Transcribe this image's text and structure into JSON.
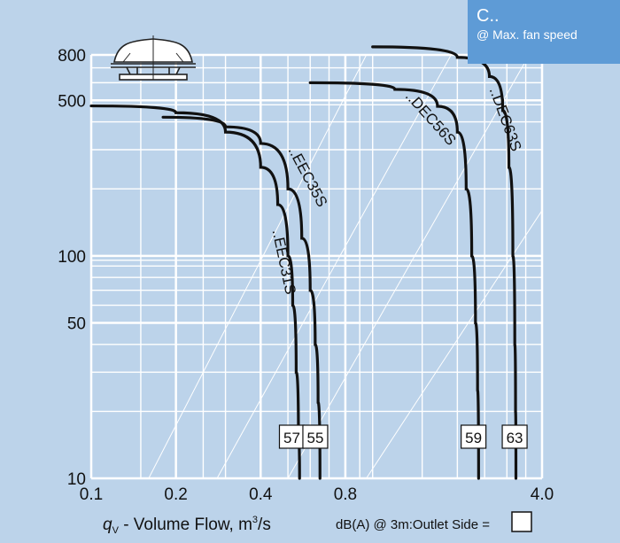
{
  "colors": {
    "background": "#bcd3ea",
    "badge": "#5e9bd6",
    "curve": "#111111",
    "grid": "#ffffff"
  },
  "badge": {
    "code": "C..",
    "note": "@ Max. fan speed"
  },
  "icon": "roof-fan-icon",
  "chart_data": {
    "type": "line",
    "x_scale": "log",
    "y_scale": "log",
    "xlim": [
      0.1,
      4.0
    ],
    "ylim": [
      10,
      800
    ],
    "x_ticks": [
      {
        "value": 0.1,
        "label": "0.1"
      },
      {
        "value": 0.2,
        "label": "0.2"
      },
      {
        "value": 0.4,
        "label": "0.4"
      },
      {
        "value": 0.8,
        "label": "0.8"
      },
      {
        "value": 4.0,
        "label": "4.0"
      }
    ],
    "y_ticks": [
      {
        "value": 10,
        "label": "10"
      },
      {
        "value": 50,
        "label": "50"
      },
      {
        "value": 100,
        "label": "100"
      },
      {
        "value": 500,
        "label": "500"
      },
      {
        "value": 800,
        "label": "800"
      }
    ],
    "xlabel_var": "q",
    "xlabel_sub": "V",
    "xlabel_text": " - Volume Flow, m",
    "xlabel_sup": "3",
    "xlabel_tail": "/s",
    "footer_note": "dB(A) @ 3m:Outlet  Side =",
    "grid": true,
    "series": [
      {
        "name": "..EEC31S",
        "sound_level": "57",
        "points": [
          [
            0.1,
            472
          ],
          [
            0.2,
            440
          ],
          [
            0.3,
            360
          ],
          [
            0.4,
            250
          ],
          [
            0.46,
            170
          ],
          [
            0.5,
            100
          ],
          [
            0.52,
            60
          ],
          [
            0.535,
            30
          ],
          [
            0.545,
            15
          ],
          [
            0.55,
            10
          ]
        ]
      },
      {
        "name": "..EEC35S",
        "sound_level": "55",
        "points": [
          [
            0.18,
            420
          ],
          [
            0.3,
            380
          ],
          [
            0.4,
            320
          ],
          [
            0.5,
            200
          ],
          [
            0.56,
            120
          ],
          [
            0.6,
            70
          ],
          [
            0.625,
            40
          ],
          [
            0.64,
            22
          ],
          [
            0.65,
            10
          ]
        ]
      },
      {
        "name": "..DEC56S",
        "sound_level": "59",
        "points": [
          [
            0.6,
            600
          ],
          [
            1.2,
            560
          ],
          [
            1.7,
            470
          ],
          [
            2.0,
            360
          ],
          [
            2.15,
            200
          ],
          [
            2.25,
            100
          ],
          [
            2.32,
            50
          ],
          [
            2.36,
            25
          ],
          [
            2.38,
            10
          ]
        ]
      },
      {
        "name": "..DEC63S",
        "sound_level": "63",
        "points": [
          [
            1.0,
            870
          ],
          [
            2.0,
            780
          ],
          [
            2.6,
            640
          ],
          [
            2.9,
            450
          ],
          [
            3.05,
            250
          ],
          [
            3.15,
            100
          ],
          [
            3.2,
            40
          ],
          [
            3.22,
            20
          ],
          [
            3.23,
            10
          ]
        ]
      }
    ]
  }
}
